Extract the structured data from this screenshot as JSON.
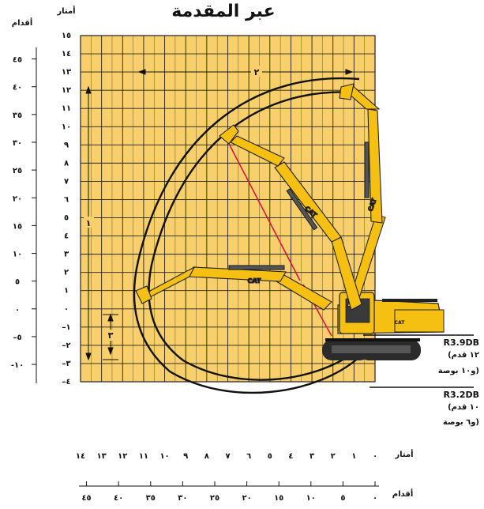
{
  "title": "عبر المقدمة",
  "units": {
    "meters_header": "أمتار",
    "feet_header": "أقدام",
    "meters_bottom": "أمتار",
    "feet_bottom": "أقدام"
  },
  "axes": {
    "y_meters_ticks": [
      "١٥",
      "١٤",
      "١٣",
      "١٢",
      "١١",
      "١٠",
      "٩",
      "٨",
      "٧",
      "٦",
      "٥",
      "٤",
      "٣",
      "٢",
      "١",
      "٠",
      "–١",
      "–٢",
      "–٣",
      "–٤"
    ],
    "y_feet_ticks": [
      "٤٥",
      "٤٠",
      "٣٥",
      "٣٠",
      "٢٥",
      "٢٠",
      "١٥",
      "١٠",
      "٥",
      "٠",
      "–٥",
      "-١٠"
    ],
    "x_meters_ticks": [
      "٠",
      "١",
      "٢",
      "٣",
      "٤",
      "٥",
      "٦",
      "٧",
      "٨",
      "٩",
      "١٠",
      "١١",
      "١٢",
      "١٣",
      "١٤"
    ],
    "x_feet_ticks": [
      "٠",
      "٥",
      "١٠",
      "١٥",
      "٢٠",
      "٢٥",
      "٣٠",
      "٣٥",
      "٤٠",
      "٤٥"
    ]
  },
  "dimensions": {
    "horizontal_reach_label": "٢",
    "vertical_height_label": "١",
    "depth_label": "٣"
  },
  "legend": [
    {
      "model": "R3.9DB",
      "line1": "(١٢ قدم",
      "line2": "و١٠ بوصة)"
    },
    {
      "model": "R3.2DB",
      "line1": "(١٠ قدم",
      "line2": "و٦ بوصة)"
    }
  ],
  "machine": {
    "brand_marks": [
      "CAT",
      "CAT",
      "CAT",
      "CAT"
    ]
  },
  "colors": {
    "grid_fill": "#f8cf6a",
    "grid_line": "#222222",
    "envelope": "#111111",
    "reach_line": "#d6173e",
    "machine_yellow": "#f5c012",
    "track": "#2b2b2b"
  }
}
